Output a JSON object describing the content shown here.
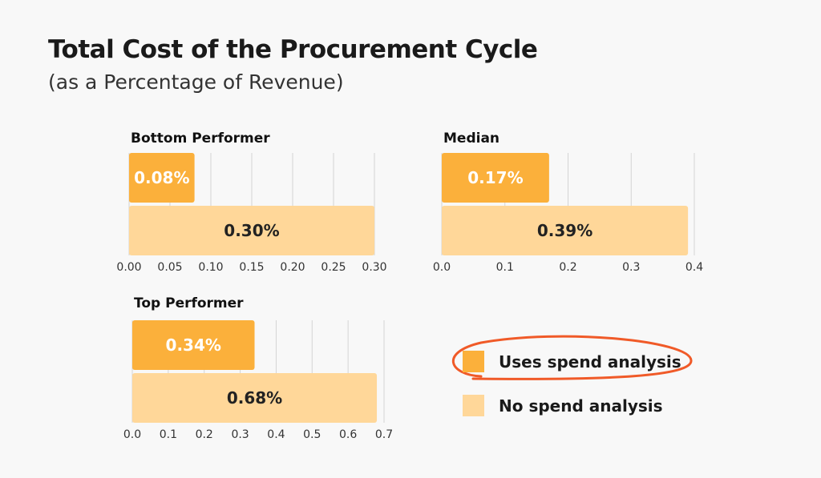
{
  "title": "Total Cost of the Procurement Cycle",
  "subtitle": "(as a Percentage of Revenue)",
  "colors": {
    "uses": "#fbb03b",
    "no": "#ffd799",
    "highlight": "#f05a28",
    "grid": "#d4d4d4"
  },
  "legend": [
    {
      "label": "Uses spend analysis",
      "color": "#fbb03b",
      "highlighted": true
    },
    {
      "label": "No spend analysis",
      "color": "#ffd799"
    }
  ],
  "chart_data": [
    {
      "type": "bar",
      "orientation": "horizontal",
      "title": "Bottom Performer",
      "series": [
        {
          "name": "Uses spend analysis",
          "values": [
            0.08
          ],
          "labels": [
            "0.08%"
          ]
        },
        {
          "name": "No spend analysis",
          "values": [
            0.3
          ],
          "labels": [
            "0.30%"
          ]
        }
      ],
      "xlim": [
        0,
        0.3
      ],
      "ticks": [
        "0.00",
        "0.05",
        "0.10",
        "0.15",
        "0.20",
        "0.25",
        "0.30"
      ],
      "grid": true
    },
    {
      "type": "bar",
      "orientation": "horizontal",
      "title": "Median",
      "series": [
        {
          "name": "Uses spend analysis",
          "values": [
            0.17
          ],
          "labels": [
            "0.17%"
          ]
        },
        {
          "name": "No spend analysis",
          "values": [
            0.39
          ],
          "labels": [
            "0.39%"
          ]
        }
      ],
      "xlim": [
        0,
        0.4
      ],
      "ticks": [
        "0.0",
        "0.1",
        "0.2",
        "0.3",
        "0.4"
      ],
      "grid": true
    },
    {
      "type": "bar",
      "orientation": "horizontal",
      "title": "Top Performer",
      "series": [
        {
          "name": "Uses spend analysis",
          "values": [
            0.34
          ],
          "labels": [
            "0.34%"
          ]
        },
        {
          "name": "No spend analysis",
          "values": [
            0.68
          ],
          "labels": [
            "0.68%"
          ]
        }
      ],
      "xlim": [
        0,
        0.7
      ],
      "ticks": [
        "0.0",
        "0.1",
        "0.2",
        "0.3",
        "0.4",
        "0.5",
        "0.6",
        "0.7"
      ],
      "grid": true
    }
  ]
}
